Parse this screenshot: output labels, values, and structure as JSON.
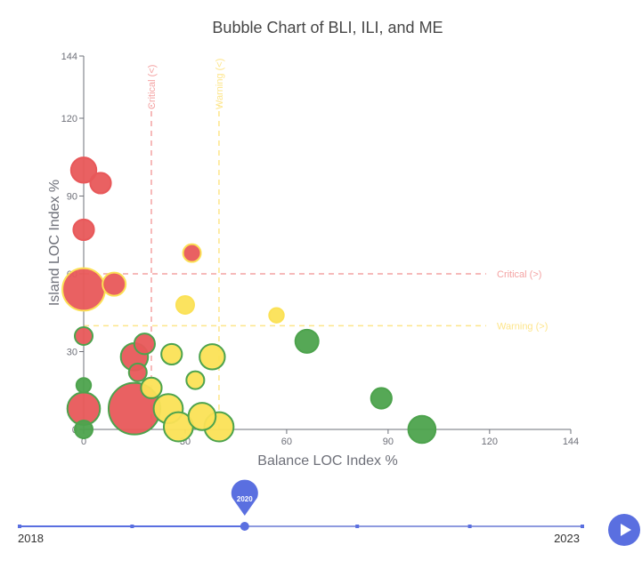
{
  "chart_data": {
    "type": "scatter",
    "title": "Bubble Chart of BLI, ILI, and ME",
    "xlabel": "Balance LOC Index %",
    "ylabel": "Island LOC Index %",
    "xlim": [
      0,
      144
    ],
    "ylim": [
      0,
      144
    ],
    "xticks": [
      0,
      30,
      60,
      90,
      120,
      144
    ],
    "yticks": [
      0,
      30,
      60,
      90,
      120,
      144
    ],
    "reference_lines": [
      {
        "axis": "x",
        "value": 20,
        "label": "Critical (<)",
        "color": "#f4a3a3"
      },
      {
        "axis": "x",
        "value": 40,
        "label": "Warning (<)",
        "color": "#fde58a"
      },
      {
        "axis": "y",
        "value": 60,
        "label": "Critical (>)",
        "color": "#f4a3a3"
      },
      {
        "axis": "y",
        "value": 40,
        "label": "Warning (>)",
        "color": "#fde58a"
      }
    ],
    "points": [
      {
        "x": 0,
        "y": 100,
        "me": 6,
        "color": "red",
        "border": "red"
      },
      {
        "x": 5,
        "y": 95,
        "me": 4,
        "color": "red",
        "border": "red"
      },
      {
        "x": 0,
        "y": 77,
        "me": 4,
        "color": "red",
        "border": "red"
      },
      {
        "x": 32,
        "y": 68,
        "me": 3,
        "color": "red",
        "border": "yellow"
      },
      {
        "x": 0,
        "y": 54,
        "me": 17,
        "color": "red",
        "border": "yellow"
      },
      {
        "x": 9,
        "y": 56,
        "me": 5,
        "color": "red",
        "border": "yellow"
      },
      {
        "x": 30,
        "y": 48,
        "me": 3,
        "color": "yellow",
        "border": "yellow"
      },
      {
        "x": 57,
        "y": 44,
        "me": 2,
        "color": "yellow",
        "border": "yellow"
      },
      {
        "x": 0,
        "y": 36,
        "me": 3,
        "color": "red",
        "border": "green"
      },
      {
        "x": 18,
        "y": 33,
        "me": 4,
        "color": "red",
        "border": "green"
      },
      {
        "x": 66,
        "y": 34,
        "me": 5,
        "color": "green",
        "border": "green"
      },
      {
        "x": 15,
        "y": 28,
        "me": 7,
        "color": "red",
        "border": "green"
      },
      {
        "x": 26,
        "y": 29,
        "me": 4,
        "color": "yellow",
        "border": "green"
      },
      {
        "x": 38,
        "y": 28,
        "me": 6,
        "color": "yellow",
        "border": "green"
      },
      {
        "x": 16,
        "y": 22,
        "me": 3,
        "color": "red",
        "border": "green"
      },
      {
        "x": 33,
        "y": 19,
        "me": 3,
        "color": "yellow",
        "border": "green"
      },
      {
        "x": 0,
        "y": 17,
        "me": 2,
        "color": "green",
        "border": "green"
      },
      {
        "x": 20,
        "y": 16,
        "me": 4,
        "color": "yellow",
        "border": "green"
      },
      {
        "x": 88,
        "y": 12,
        "me": 4,
        "color": "green",
        "border": "green"
      },
      {
        "x": 0,
        "y": 8,
        "me": 10,
        "color": "red",
        "border": "green"
      },
      {
        "x": 15,
        "y": 8,
        "me": 25,
        "color": "red",
        "border": "green"
      },
      {
        "x": 25,
        "y": 8,
        "me": 8,
        "color": "yellow",
        "border": "green"
      },
      {
        "x": 35,
        "y": 5,
        "me": 7,
        "color": "yellow",
        "border": "green"
      },
      {
        "x": 28,
        "y": 1,
        "me": 8,
        "color": "yellow",
        "border": "green"
      },
      {
        "x": 40,
        "y": 1,
        "me": 8,
        "color": "yellow",
        "border": "green"
      },
      {
        "x": 100,
        "y": 0,
        "me": 7,
        "color": "green",
        "border": "green"
      },
      {
        "x": 0,
        "y": 0,
        "me": 3,
        "color": "green",
        "border": "green"
      }
    ]
  },
  "colors": {
    "red": "#e8585a",
    "yellow": "#fbe156",
    "green": "#4da34d",
    "axis": "#6e7079",
    "timeline": "#5a6fe0",
    "timeline_track": "#8e9adf"
  },
  "timeline": {
    "years": [
      2018,
      2019,
      2020,
      2021,
      2022,
      2023
    ],
    "current": 2020,
    "current_label": "2020",
    "start_label": "2018",
    "end_label": "2023"
  }
}
